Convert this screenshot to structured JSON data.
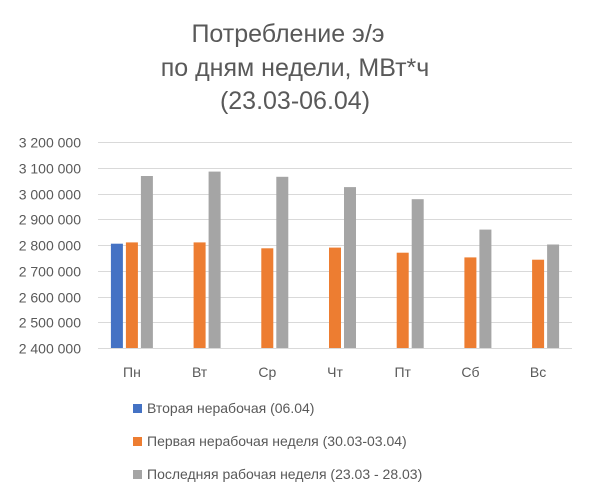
{
  "chart_data": {
    "type": "bar",
    "title": [
      "Потребление э/э",
      "по дням недели, МВт*ч",
      "(23.03-06.04)"
    ],
    "xlabel": "",
    "ylabel": "",
    "categories": [
      "Пн",
      "Вт",
      "Ср",
      "Чт",
      "Пт",
      "Сб",
      "Вс"
    ],
    "ylim": [
      2400000,
      3200000
    ],
    "yticks": [
      2400000,
      2500000,
      2600000,
      2700000,
      2800000,
      2900000,
      3000000,
      3100000,
      3200000
    ],
    "ytick_labels": [
      "2 400 000",
      "2 500 000",
      "2 600 000",
      "2 700 000",
      "2 800 000",
      "2 900 000",
      "3 000 000",
      "3 100 000",
      "3 200 000"
    ],
    "grid": true,
    "legend_position": "bottom",
    "series": [
      {
        "name": "Вторая нерабочая (06.04)",
        "color": "#4472C4",
        "values": [
          2805000,
          null,
          null,
          null,
          null,
          null,
          null
        ]
      },
      {
        "name": "Первая нерабочая неделя (30.03-03.04)",
        "color": "#ED7D31",
        "values": [
          2810000,
          2810000,
          2787000,
          2790000,
          2770000,
          2752000,
          2743000
        ]
      },
      {
        "name": "Последняя рабочая неделя (23.03 - 28.03)",
        "color": "#A5A5A5",
        "values": [
          3068000,
          3085000,
          3065000,
          3025000,
          2978000,
          2860000,
          2802000
        ]
      }
    ]
  }
}
